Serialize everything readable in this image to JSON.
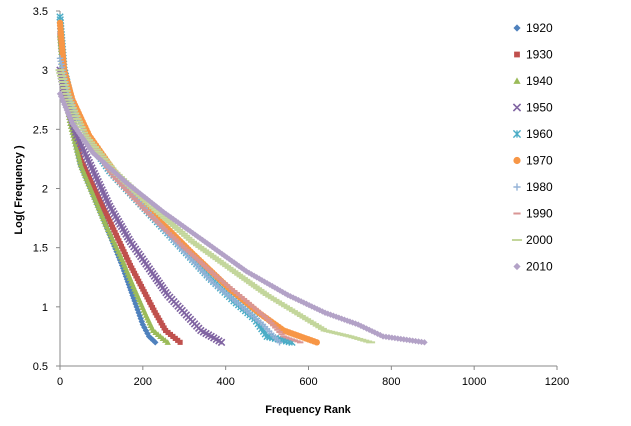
{
  "chart_data": {
    "type": "scatter",
    "title": "",
    "xlabel": "Frequency Rank",
    "ylabel": "Log( Frequency )",
    "xlim": [
      0,
      1200
    ],
    "ylim": [
      0.5,
      3.5
    ],
    "xticks": [
      0,
      200,
      400,
      600,
      800,
      1000,
      1200
    ],
    "yticks": [
      0.5,
      1,
      1.5,
      2,
      2.5,
      3,
      3.5
    ],
    "ytick_labels": [
      "0.5",
      "1",
      "1.5",
      "2",
      "2.5",
      "3",
      "3.5"
    ],
    "grid": false,
    "legend_position": "right",
    "series": [
      {
        "name": "1920",
        "marker": "diamond",
        "color": "#4f81bd",
        "points": [
          [
            0,
            3.35
          ],
          [
            10,
            2.9
          ],
          [
            25,
            2.6
          ],
          [
            50,
            2.2
          ],
          [
            80,
            1.95
          ],
          [
            110,
            1.7
          ],
          [
            150,
            1.35
          ],
          [
            180,
            1.05
          ],
          [
            200,
            0.85
          ],
          [
            215,
            0.75
          ],
          [
            230,
            0.7
          ]
        ]
      },
      {
        "name": "1930",
        "marker": "square",
        "color": "#c0504d",
        "points": [
          [
            0,
            3.3
          ],
          [
            10,
            2.9
          ],
          [
            25,
            2.6
          ],
          [
            50,
            2.25
          ],
          [
            90,
            1.95
          ],
          [
            130,
            1.65
          ],
          [
            170,
            1.35
          ],
          [
            200,
            1.15
          ],
          [
            230,
            0.95
          ],
          [
            255,
            0.8
          ],
          [
            290,
            0.7
          ]
        ]
      },
      {
        "name": "1940",
        "marker": "triangle",
        "color": "#9bbb59",
        "points": [
          [
            0,
            3.3
          ],
          [
            10,
            2.85
          ],
          [
            25,
            2.55
          ],
          [
            50,
            2.2
          ],
          [
            80,
            1.95
          ],
          [
            110,
            1.7
          ],
          [
            150,
            1.4
          ],
          [
            180,
            1.15
          ],
          [
            205,
            0.95
          ],
          [
            225,
            0.8
          ],
          [
            260,
            0.7
          ]
        ]
      },
      {
        "name": "1950",
        "marker": "x",
        "color": "#8064a2",
        "points": [
          [
            0,
            3.0
          ],
          [
            15,
            2.75
          ],
          [
            40,
            2.45
          ],
          [
            80,
            2.15
          ],
          [
            120,
            1.85
          ],
          [
            170,
            1.55
          ],
          [
            220,
            1.3
          ],
          [
            260,
            1.1
          ],
          [
            300,
            0.95
          ],
          [
            340,
            0.8
          ],
          [
            390,
            0.7
          ]
        ]
      },
      {
        "name": "1960",
        "marker": "star",
        "color": "#4bacc6",
        "points": [
          [
            0,
            3.45
          ],
          [
            10,
            3.0
          ],
          [
            30,
            2.7
          ],
          [
            70,
            2.4
          ],
          [
            120,
            2.15
          ],
          [
            200,
            1.85
          ],
          [
            280,
            1.55
          ],
          [
            360,
            1.25
          ],
          [
            420,
            1.05
          ],
          [
            470,
            0.9
          ],
          [
            500,
            0.75
          ],
          [
            560,
            0.7
          ]
        ]
      },
      {
        "name": "1970",
        "marker": "circle",
        "color": "#f79646",
        "points": [
          [
            0,
            3.4
          ],
          [
            10,
            3.0
          ],
          [
            30,
            2.75
          ],
          [
            70,
            2.45
          ],
          [
            130,
            2.15
          ],
          [
            220,
            1.8
          ],
          [
            320,
            1.45
          ],
          [
            410,
            1.15
          ],
          [
            480,
            0.95
          ],
          [
            540,
            0.8
          ],
          [
            620,
            0.7
          ]
        ]
      },
      {
        "name": "1980",
        "marker": "plus",
        "color": "#95b3d7",
        "points": [
          [
            0,
            3.1
          ],
          [
            20,
            2.8
          ],
          [
            60,
            2.45
          ],
          [
            120,
            2.15
          ],
          [
            200,
            1.85
          ],
          [
            290,
            1.5
          ],
          [
            370,
            1.2
          ],
          [
            440,
            1.0
          ],
          [
            490,
            0.85
          ],
          [
            530,
            0.7
          ]
        ]
      },
      {
        "name": "1990",
        "marker": "dash",
        "color": "#d99694",
        "points": [
          [
            0,
            3.0
          ],
          [
            20,
            2.75
          ],
          [
            60,
            2.45
          ],
          [
            130,
            2.1
          ],
          [
            210,
            1.8
          ],
          [
            300,
            1.5
          ],
          [
            380,
            1.25
          ],
          [
            450,
            1.05
          ],
          [
            500,
            0.9
          ],
          [
            540,
            0.75
          ],
          [
            580,
            0.7
          ]
        ]
      },
      {
        "name": "2000",
        "marker": "long-dash",
        "color": "#c3d69b",
        "points": [
          [
            0,
            3.0
          ],
          [
            20,
            2.75
          ],
          [
            60,
            2.45
          ],
          [
            130,
            2.15
          ],
          [
            220,
            1.85
          ],
          [
            320,
            1.55
          ],
          [
            420,
            1.3
          ],
          [
            500,
            1.1
          ],
          [
            570,
            0.95
          ],
          [
            640,
            0.8
          ],
          [
            700,
            0.75
          ],
          [
            750,
            0.7
          ]
        ]
      },
      {
        "name": "2010",
        "marker": "diamond",
        "color": "#b3a2c7",
        "points": [
          [
            0,
            2.8
          ],
          [
            30,
            2.55
          ],
          [
            80,
            2.3
          ],
          [
            160,
            2.05
          ],
          [
            250,
            1.8
          ],
          [
            350,
            1.55
          ],
          [
            450,
            1.3
          ],
          [
            550,
            1.1
          ],
          [
            640,
            0.95
          ],
          [
            720,
            0.85
          ],
          [
            780,
            0.75
          ],
          [
            880,
            0.7
          ]
        ]
      }
    ]
  }
}
